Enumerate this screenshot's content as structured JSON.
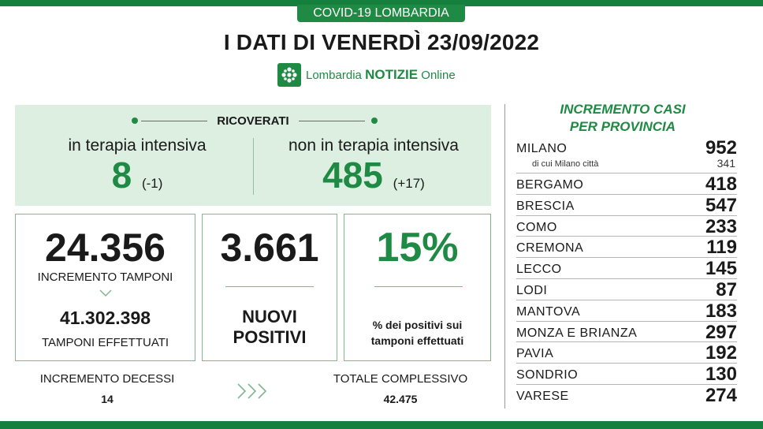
{
  "header": {
    "badge": "COVID-19 LOMBARDIA",
    "title": "I DATI DI VENERDÌ 23/09/2022",
    "logo_text_regular": "Lombardia",
    "logo_text_bold": "NOTIZIE",
    "logo_text_suffix": "Online"
  },
  "ricoverati": {
    "label": "RICOVERATI",
    "intensiva": {
      "caption": "in terapia intensiva",
      "value": "8",
      "delta": "(-1)"
    },
    "non_intensiva": {
      "caption": "non in terapia intensiva",
      "value": "485",
      "delta": "(+17)"
    }
  },
  "tamponi": {
    "increment_value": "24.356",
    "increment_label": "INCREMENTO TAMPONI",
    "total_value": "41.302.398",
    "total_label": "TAMPONI EFFETTUATI"
  },
  "positivi": {
    "value": "3.661",
    "label_line1": "NUOVI",
    "label_line2": "POSITIVI"
  },
  "percentuale": {
    "value": "15%",
    "label_line1": "% dei positivi sui",
    "label_line2": "tamponi effettuati"
  },
  "decessi": {
    "label": "INCREMENTO DECESSI",
    "value": "14"
  },
  "totale": {
    "label": "TOTALE COMPLESSIVO",
    "value": "42.475"
  },
  "province": {
    "title_line1": "INCREMENTO CASI",
    "title_line2": "PER PROVINCIA",
    "items": [
      {
        "name": "MILANO",
        "value": "952",
        "sub_label": "di cui Milano città",
        "sub_value": "341"
      },
      {
        "name": "BERGAMO",
        "value": "418"
      },
      {
        "name": "BRESCIA",
        "value": "547"
      },
      {
        "name": "COMO",
        "value": "233"
      },
      {
        "name": "CREMONA",
        "value": "119"
      },
      {
        "name": "LECCO",
        "value": "145"
      },
      {
        "name": "LODI",
        "value": "87"
      },
      {
        "name": "MANTOVA",
        "value": "183"
      },
      {
        "name": "MONZA E BRIANZA",
        "value": "297"
      },
      {
        "name": "PAVIA",
        "value": "192"
      },
      {
        "name": "SONDRIO",
        "value": "130"
      },
      {
        "name": "VARESE",
        "value": "274"
      }
    ]
  },
  "colors": {
    "brand_green": "#1f8a43",
    "panel_green": "#dcefe1"
  },
  "icons": {
    "logo": "region-logo-icon",
    "arrows": "chevron-right-icon"
  }
}
